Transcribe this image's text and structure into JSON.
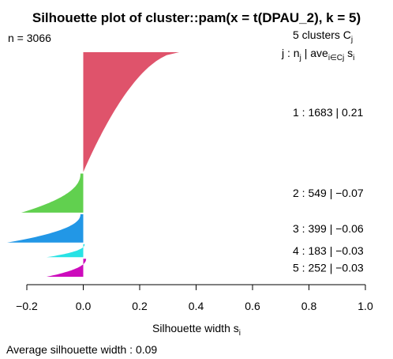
{
  "chart_data": {
    "type": "silhouette",
    "title": "Silhouette plot of cluster::pam(x = t(DPAU_2), k = 5)",
    "n_label": "n = 3066",
    "n": 3066,
    "k_label_prefix": "5  clusters  C",
    "k_label_sub": "j",
    "header": {
      "j": "j :  n",
      "j_sub": "j",
      "ave": " | ave",
      "ave_sub": "i∈Cj",
      "s": "  s",
      "s_sub": "i"
    },
    "clusters": [
      {
        "id": "1",
        "n": 1683,
        "avg": 0.21,
        "color": "#DF536B",
        "min": 0.0,
        "max": 0.34,
        "label": "1 :   1683  |  0.21"
      },
      {
        "id": "2",
        "n": 549,
        "avg": -0.07,
        "color": "#61D04F",
        "min": -0.22,
        "max": -0.01,
        "label": "2 :   549  |  −0.07"
      },
      {
        "id": "3",
        "n": 399,
        "avg": -0.06,
        "color": "#2297E6",
        "min": -0.27,
        "max": -0.01,
        "label": "3 :   399  |  −0.06"
      },
      {
        "id": "4",
        "n": 183,
        "avg": -0.03,
        "color": "#28E2E5",
        "min": -0.13,
        "max": 0.005,
        "label": "4 :   183  |  −0.03"
      },
      {
        "id": "5",
        "n": 252,
        "avg": -0.03,
        "color": "#CD0BBC",
        "min": -0.13,
        "max": 0.01,
        "label": "5 :   252  |  −0.03"
      }
    ],
    "x_ticks": [
      "−0.2",
      "0.0",
      "0.2",
      "0.4",
      "0.6",
      "0.8",
      "1.0"
    ],
    "x_tick_values": [
      -0.2,
      0.0,
      0.2,
      0.4,
      0.6,
      0.8,
      1.0
    ],
    "xlim": [
      -0.2,
      1.0
    ],
    "xlabel": "Silhouette width s",
    "xlabel_sub": "i",
    "footer": "Average silhouette width :  0.09",
    "avg_width": 0.09
  }
}
